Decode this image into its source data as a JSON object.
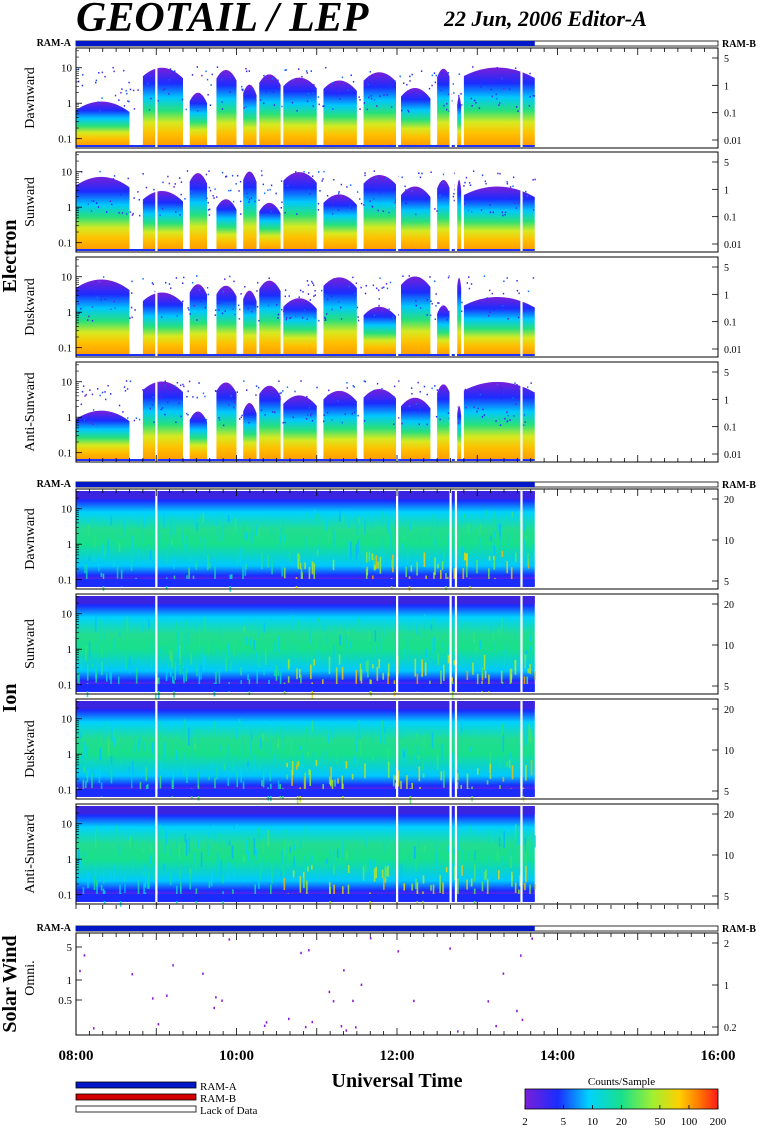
{
  "header": {
    "title": "GEOTAIL / LEP",
    "subtitle": "22 Jun, 2006   Editor-A"
  },
  "colors": {
    "ram_a": "#0018c8",
    "ram_b": "#d40000",
    "lack_of_data": "#ffffff",
    "frame": "#000000"
  },
  "ram_labels": {
    "left": "RAM-A",
    "right": "RAM-B"
  },
  "sections": [
    {
      "label": "Electron",
      "panels": [
        {
          "label": "Dawnward",
          "left_ticks": [
            "10",
            "1",
            "0.1"
          ],
          "right_ticks": [
            "5",
            "1",
            "0.1",
            "0.01"
          ]
        },
        {
          "label": "Sunward",
          "left_ticks": [
            "10",
            "1",
            "0.1"
          ],
          "right_ticks": [
            "5",
            "1",
            "0.1",
            "0.01"
          ]
        },
        {
          "label": "Duskward",
          "left_ticks": [
            "10",
            "1",
            "0.1"
          ],
          "right_ticks": [
            "5",
            "1",
            "0.1",
            "0.01"
          ]
        },
        {
          "label": "Anti-Sunward",
          "left_ticks": [
            "10",
            "1",
            "0.1"
          ],
          "right_ticks": [
            "5",
            "1",
            "0.1",
            "0.01"
          ]
        }
      ]
    },
    {
      "label": "Ion",
      "panels": [
        {
          "label": "Dawnward",
          "left_ticks": [
            "10",
            "1",
            "0.1"
          ],
          "right_ticks": [
            "20",
            "10",
            "5"
          ]
        },
        {
          "label": "Sunward",
          "left_ticks": [
            "10",
            "1",
            "0.1"
          ],
          "right_ticks": [
            "20",
            "10",
            "5"
          ]
        },
        {
          "label": "Duskward",
          "left_ticks": [
            "10",
            "1",
            "0.1"
          ],
          "right_ticks": [
            "20",
            "10",
            "5"
          ]
        },
        {
          "label": "Anti-Sunward",
          "left_ticks": [
            "10",
            "1",
            "0.1"
          ],
          "right_ticks": [
            "20",
            "10",
            "5"
          ]
        }
      ]
    },
    {
      "label": "Solar Wind",
      "panels": [
        {
          "label": "Omni.",
          "left_ticks": [
            "5",
            "1",
            "0.5"
          ],
          "right_ticks": [
            "2",
            "1",
            "0.2"
          ]
        }
      ]
    }
  ],
  "chart_data": {
    "type": "heatmap",
    "title": "GEOTAIL / LEP",
    "date": "22 Jun, 2006",
    "xlabel": "Universal Time",
    "x_ticks": [
      "08:00",
      "10:00",
      "12:00",
      "14:00",
      "16:00"
    ],
    "x_range": [
      "08:00",
      "16:00"
    ],
    "data_coverage": {
      "start": "08:00",
      "end": "13:43"
    },
    "mode_bars": [
      {
        "mode": "RAM-A",
        "start": "08:00",
        "end": "13:43"
      },
      {
        "mode": "Lack of Data",
        "start": "13:43",
        "end": "16:00"
      }
    ],
    "colorbar": {
      "label": "Counts/Sample",
      "scale": "log",
      "ticks": [
        "2",
        "5",
        "10",
        "20",
        "50",
        "100",
        "200"
      ]
    },
    "data_gaps_ut": [
      "09:00",
      "12:00",
      "12:40",
      "12:44",
      "13:33"
    ],
    "electron_activity_blocks_ut": [
      [
        "08:00",
        "08:40"
      ],
      [
        "08:50",
        "09:20"
      ],
      [
        "09:25",
        "09:38"
      ],
      [
        "09:45",
        "10:00"
      ],
      [
        "10:05",
        "10:15"
      ],
      [
        "10:17",
        "10:33"
      ],
      [
        "10:35",
        "11:00"
      ],
      [
        "11:05",
        "11:30"
      ],
      [
        "11:35",
        "12:00"
      ],
      [
        "12:03",
        "12:25"
      ],
      [
        "12:30",
        "12:40"
      ],
      [
        "12:45",
        "12:48"
      ],
      [
        "12:50",
        "13:43"
      ]
    ]
  },
  "legend": {
    "items": [
      {
        "label": "RAM-A",
        "color": "#0018c8"
      },
      {
        "label": "RAM-B",
        "color": "#d40000"
      },
      {
        "label": "Lack of Data",
        "color": "#ffffff"
      }
    ]
  }
}
